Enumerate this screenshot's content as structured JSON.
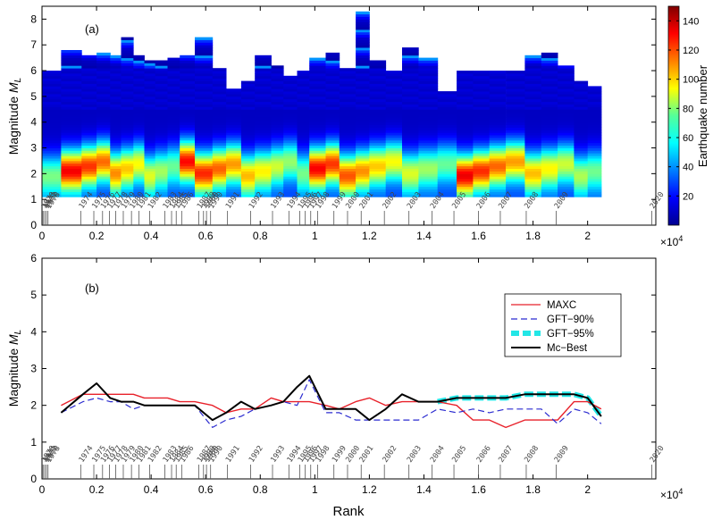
{
  "chart_data": [
    {
      "panel": "top",
      "type": "heatmap",
      "label": "(a)",
      "ylabel": "Magnitude",
      "ylabel_sub": "L",
      "ylabel_prefix": "M",
      "xlim": [
        0,
        2.25
      ],
      "ylim": [
        0,
        8.5
      ],
      "xticks": [
        "0",
        "0.2",
        "0.4",
        "0.6",
        "0.8",
        "1",
        "1.2",
        "1.4",
        "1.6",
        "1.8",
        "2"
      ],
      "yticks": [
        "0",
        "1",
        "2",
        "3",
        "4",
        "5",
        "6",
        "7",
        "8"
      ],
      "x_multiplier": "×10",
      "x_multiplier_exp": "4",
      "colorbar": {
        "label": "Earthquake number",
        "range": [
          0,
          150
        ],
        "ticks": [
          "20",
          "40",
          "60",
          "80",
          "100",
          "120",
          "140"
        ]
      },
      "column_edges": [
        0,
        0.07,
        0.145,
        0.2,
        0.25,
        0.29,
        0.335,
        0.375,
        0.415,
        0.46,
        0.505,
        0.56,
        0.625,
        0.675,
        0.73,
        0.78,
        0.84,
        0.885,
        0.935,
        0.98,
        1.04,
        1.09,
        1.15,
        1.2,
        1.26,
        1.32,
        1.38,
        1.45,
        1.52,
        1.58,
        1.64,
        1.7,
        1.77,
        1.83,
        1.89,
        1.95,
        2.0,
        2.05
      ],
      "column_max_magnitude": [
        6.0,
        6.8,
        6.6,
        6.7,
        6.6,
        7.3,
        6.6,
        6.4,
        6.4,
        6.5,
        6.6,
        7.3,
        6.1,
        5.3,
        5.6,
        6.6,
        6.2,
        5.8,
        6.0,
        6.5,
        6.7,
        6.1,
        8.3,
        6.4,
        6.0,
        6.9,
        6.5,
        5.2,
        6.0,
        6.0,
        6.0,
        6.0,
        6.6,
        6.7,
        6.2,
        5.6,
        5.4
      ]
    },
    {
      "panel": "bottom",
      "type": "line",
      "label": "(b)",
      "ylabel": "Magnitude",
      "ylabel_sub": "L",
      "ylabel_prefix": "M",
      "xlabel": "Rank",
      "xlim": [
        0,
        2.25
      ],
      "ylim": [
        0,
        6
      ],
      "xticks": [
        "0",
        "0.2",
        "0.4",
        "0.6",
        "0.8",
        "1",
        "1.2",
        "1.4",
        "1.6",
        "1.8",
        "2"
      ],
      "yticks": [
        "0",
        "1",
        "2",
        "3",
        "4",
        "5",
        "6"
      ],
      "x_multiplier": "×10",
      "x_multiplier_exp": "4",
      "legend_position": "top-right",
      "series": [
        {
          "name": "MAXC",
          "color": "#e8212a",
          "style": "solid",
          "x": [
            0.07,
            0.15,
            0.2,
            0.25,
            0.29,
            0.335,
            0.375,
            0.415,
            0.46,
            0.505,
            0.56,
            0.625,
            0.675,
            0.73,
            0.78,
            0.84,
            0.885,
            0.935,
            0.98,
            1.04,
            1.09,
            1.15,
            1.2,
            1.26,
            1.32,
            1.38,
            1.45,
            1.52,
            1.58,
            1.64,
            1.7,
            1.77,
            1.83,
            1.89,
            1.95,
            2.0,
            2.05
          ],
          "y": [
            2.0,
            2.3,
            2.3,
            2.3,
            2.3,
            2.3,
            2.2,
            2.2,
            2.2,
            2.1,
            2.1,
            2.0,
            1.8,
            1.9,
            1.9,
            2.2,
            2.1,
            2.1,
            2.1,
            2.0,
            1.9,
            2.1,
            2.2,
            2.0,
            2.1,
            2.1,
            2.1,
            2.0,
            1.6,
            1.6,
            1.4,
            1.6,
            1.6,
            1.6,
            2.1,
            2.1,
            1.9
          ]
        },
        {
          "name": "GFT−90%",
          "color": "#2b2bd0",
          "style": "dash",
          "x": [
            0.07,
            0.15,
            0.2,
            0.25,
            0.29,
            0.335,
            0.375,
            0.415,
            0.46,
            0.505,
            0.56,
            0.625,
            0.675,
            0.73,
            0.78,
            0.84,
            0.885,
            0.935,
            0.98,
            1.04,
            1.09,
            1.15,
            1.2,
            1.26,
            1.32,
            1.38,
            1.45,
            1.52,
            1.58,
            1.64,
            1.7,
            1.77,
            1.83,
            1.89,
            1.95,
            2.0,
            2.05
          ],
          "y": [
            1.8,
            2.1,
            2.2,
            2.1,
            2.1,
            1.9,
            2.0,
            2.0,
            2.0,
            2.0,
            2.0,
            1.4,
            1.6,
            1.7,
            1.9,
            2.0,
            2.1,
            2.0,
            2.7,
            1.8,
            1.8,
            1.6,
            1.6,
            1.6,
            1.6,
            1.6,
            1.9,
            1.8,
            1.9,
            1.8,
            1.9,
            1.9,
            1.9,
            1.5,
            1.9,
            1.8,
            1.5
          ]
        },
        {
          "name": "GFT−95%",
          "color": "#22e6e6",
          "style": "thickdash",
          "x": [
            0.07,
            0.15,
            0.2,
            0.25,
            0.29,
            0.335,
            0.375,
            0.415,
            0.46,
            0.505,
            0.56,
            0.625,
            0.675,
            0.73,
            0.78,
            0.84,
            0.885,
            0.935,
            0.98,
            1.04,
            1.09,
            1.15,
            1.2,
            1.26,
            1.32,
            1.38,
            1.45,
            1.52,
            1.58,
            1.64,
            1.7,
            1.77,
            1.83,
            1.89,
            1.95,
            2.0,
            2.05
          ],
          "y": [
            null,
            null,
            null,
            null,
            null,
            null,
            null,
            null,
            null,
            null,
            null,
            null,
            null,
            null,
            null,
            null,
            null,
            null,
            null,
            null,
            null,
            null,
            null,
            null,
            null,
            null,
            2.1,
            2.2,
            2.2,
            2.2,
            2.2,
            2.3,
            2.3,
            2.3,
            2.3,
            2.2,
            1.7
          ]
        },
        {
          "name": "Mc−Best",
          "color": "#000000",
          "style": "solid",
          "x": [
            0.07,
            0.15,
            0.2,
            0.25,
            0.29,
            0.335,
            0.375,
            0.415,
            0.46,
            0.505,
            0.56,
            0.625,
            0.675,
            0.73,
            0.78,
            0.84,
            0.885,
            0.935,
            0.98,
            1.04,
            1.09,
            1.15,
            1.2,
            1.26,
            1.32,
            1.38,
            1.45,
            1.52,
            1.58,
            1.64,
            1.7,
            1.77,
            1.83,
            1.89,
            1.95,
            2.0,
            2.05
          ],
          "y": [
            1.8,
            2.3,
            2.6,
            2.2,
            2.1,
            2.1,
            2.0,
            2.0,
            2.0,
            2.0,
            2.0,
            1.6,
            1.8,
            2.1,
            1.9,
            2.0,
            2.1,
            2.5,
            2.8,
            1.9,
            1.9,
            1.9,
            1.6,
            1.9,
            2.3,
            2.1,
            2.1,
            2.2,
            2.2,
            2.2,
            2.2,
            2.3,
            2.3,
            2.3,
            2.3,
            2.2,
            1.7
          ]
        }
      ]
    }
  ],
  "year_markers": [
    {
      "year": "1970",
      "x": 0.004
    },
    {
      "year": "1971",
      "x": 0.01
    },
    {
      "year": "1972",
      "x": 0.016
    },
    {
      "year": "1973",
      "x": 0.022
    },
    {
      "year": "1974",
      "x": 0.142
    },
    {
      "year": "1975",
      "x": 0.19
    },
    {
      "year": "1976",
      "x": 0.222
    },
    {
      "year": "1977",
      "x": 0.247
    },
    {
      "year": "1978",
      "x": 0.27
    },
    {
      "year": "1979",
      "x": 0.298
    },
    {
      "year": "1980",
      "x": 0.328
    },
    {
      "year": "1981",
      "x": 0.355
    },
    {
      "year": "1982",
      "x": 0.395
    },
    {
      "year": "1983",
      "x": 0.45
    },
    {
      "year": "1984",
      "x": 0.475
    },
    {
      "year": "1985",
      "x": 0.492
    },
    {
      "year": "1986",
      "x": 0.512
    },
    {
      "year": "1987",
      "x": 0.575
    },
    {
      "year": "1988",
      "x": 0.592
    },
    {
      "year": "1989",
      "x": 0.603
    },
    {
      "year": "1990",
      "x": 0.618
    },
    {
      "year": "1991",
      "x": 0.68
    },
    {
      "year": "1992",
      "x": 0.765
    },
    {
      "year": "1993",
      "x": 0.845
    },
    {
      "year": "1994",
      "x": 0.905
    },
    {
      "year": "1995",
      "x": 0.945
    },
    {
      "year": "1996",
      "x": 0.965
    },
    {
      "year": "1997",
      "x": 0.985
    },
    {
      "year": "1998",
      "x": 1.01
    },
    {
      "year": "1999",
      "x": 1.07
    },
    {
      "year": "2000",
      "x": 1.12
    },
    {
      "year": "2001",
      "x": 1.17
    },
    {
      "year": "2002",
      "x": 1.255
    },
    {
      "year": "2003",
      "x": 1.345
    },
    {
      "year": "2004",
      "x": 1.43
    },
    {
      "year": "2005",
      "x": 1.51
    },
    {
      "year": "2006",
      "x": 1.6
    },
    {
      "year": "2007",
      "x": 1.68
    },
    {
      "year": "2008",
      "x": 1.775
    },
    {
      "year": "2009",
      "x": 1.885
    },
    {
      "year": "2020",
      "x": 2.235
    }
  ]
}
